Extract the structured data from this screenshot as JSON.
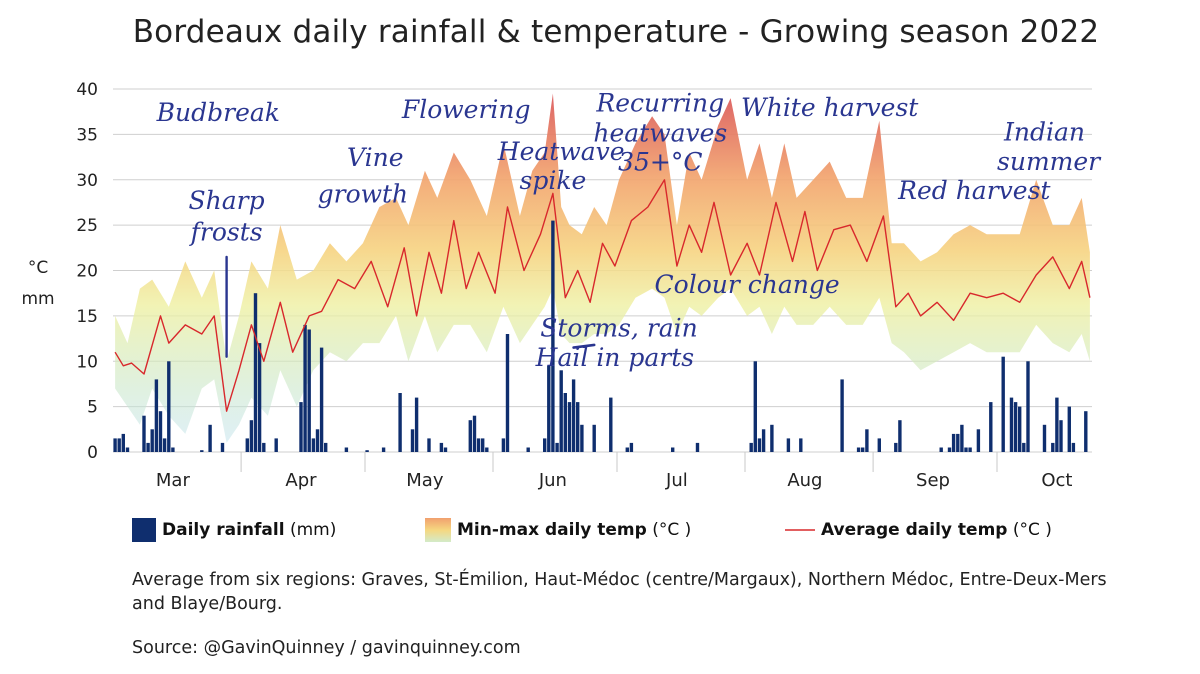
{
  "chart_data": {
    "type": "bar+area+line",
    "title": "Bordeaux daily rainfall & temperature - Growing season 2022",
    "ylabel": [
      "°C",
      "mm"
    ],
    "ylim": [
      0,
      40
    ],
    "yticks": [
      0,
      5,
      10,
      15,
      20,
      25,
      30,
      35,
      40
    ],
    "months": [
      "Mar",
      "Apr",
      "May",
      "Jun",
      "Jul",
      "Aug",
      "Sep",
      "Oct"
    ],
    "grid": true,
    "legend": {
      "rain_label": "Daily rainfall",
      "rain_unit": "(mm)",
      "range_label": "Min-max daily temp",
      "range_unit": "(°C )",
      "avg_label": "Average daily temp",
      "avg_unit": "(°C )"
    },
    "annotations": [
      {
        "text": "Budbreak",
        "date": "2022-03-26",
        "y": 36.5
      },
      {
        "text": "Sharp",
        "date": "2022-03-28",
        "y": 26.8
      },
      {
        "text": "frosts",
        "date": "2022-03-28",
        "y": 23.3
      },
      {
        "text": "Vine",
        "date": "2022-05-03",
        "y": 31.5
      },
      {
        "text": "growth",
        "date": "2022-04-30",
        "y": 27.5
      },
      {
        "text": "Flowering",
        "date": "2022-05-25",
        "y": 36.8
      },
      {
        "text": "Heatwave",
        "date": "2022-06-17",
        "y": 32.2
      },
      {
        "text": "spike",
        "date": "2022-06-15",
        "y": 29.0
      },
      {
        "text": "Recurring",
        "date": "2022-07-11",
        "y": 37.5
      },
      {
        "text": "heatwaves",
        "date": "2022-07-11",
        "y": 34.2
      },
      {
        "text": "35+°C",
        "date": "2022-07-11",
        "y": 31.0
      },
      {
        "text": "White harvest",
        "date": "2022-08-21",
        "y": 37.0
      },
      {
        "text": "Red harvest",
        "date": "2022-09-25",
        "y": 27.9
      },
      {
        "text": "Colour change",
        "date": "2022-08-01",
        "y": 17.5
      },
      {
        "text": "Storms, rain",
        "date": "2022-07-01",
        "y": 12.7
      },
      {
        "text": "Hail in parts",
        "date": "2022-06-30",
        "y": 9.5
      },
      {
        "text": "Indian",
        "date": "2022-10-12",
        "y": 34.3
      },
      {
        "text": "summer",
        "date": "2022-10-13",
        "y": 31.1
      }
    ],
    "avg_temp": {
      "name": "Average daily temp",
      "x": [
        "2022-03-01",
        "2022-03-03",
        "2022-03-05",
        "2022-03-08",
        "2022-03-12",
        "2022-03-14",
        "2022-03-18",
        "2022-03-22",
        "2022-03-25",
        "2022-03-28",
        "2022-03-31",
        "2022-04-03",
        "2022-04-06",
        "2022-04-10",
        "2022-04-13",
        "2022-04-17",
        "2022-04-20",
        "2022-04-24",
        "2022-04-28",
        "2022-05-02",
        "2022-05-06",
        "2022-05-10",
        "2022-05-13",
        "2022-05-16",
        "2022-05-19",
        "2022-05-22",
        "2022-05-25",
        "2022-05-28",
        "2022-06-01",
        "2022-06-04",
        "2022-06-08",
        "2022-06-12",
        "2022-06-15",
        "2022-06-18",
        "2022-06-21",
        "2022-06-24",
        "2022-06-27",
        "2022-06-30",
        "2022-07-04",
        "2022-07-08",
        "2022-07-12",
        "2022-07-15",
        "2022-07-18",
        "2022-07-21",
        "2022-07-24",
        "2022-07-28",
        "2022-08-01",
        "2022-08-04",
        "2022-08-08",
        "2022-08-12",
        "2022-08-15",
        "2022-08-18",
        "2022-08-22",
        "2022-08-26",
        "2022-08-30",
        "2022-09-03",
        "2022-09-06",
        "2022-09-09",
        "2022-09-12",
        "2022-09-16",
        "2022-09-20",
        "2022-09-24",
        "2022-09-28",
        "2022-10-02",
        "2022-10-06",
        "2022-10-10",
        "2022-10-14",
        "2022-10-18",
        "2022-10-21",
        "2022-10-23"
      ],
      "y": [
        11,
        9.5,
        9.8,
        8.6,
        15,
        12,
        14,
        13,
        15,
        4.5,
        9,
        14,
        10,
        16.5,
        11,
        15,
        15.5,
        19,
        18,
        21,
        16,
        22.5,
        15,
        22,
        17.5,
        25.5,
        18,
        22,
        17.5,
        27,
        20,
        24,
        28.5,
        17,
        20,
        16.5,
        23,
        20.5,
        25.5,
        27,
        30,
        20.5,
        25,
        22,
        27.5,
        19.5,
        23,
        19.5,
        27.5,
        21,
        26.5,
        20,
        24.5,
        25,
        21,
        26,
        16,
        17.5,
        15,
        16.5,
        14.5,
        17.5,
        17,
        17.5,
        16.5,
        19.5,
        21.5,
        18,
        21,
        17
      ]
    },
    "temp_range": {
      "name": "Min-max daily temp",
      "x": [
        "2022-03-01",
        "2022-03-04",
        "2022-03-07",
        "2022-03-10",
        "2022-03-14",
        "2022-03-18",
        "2022-03-22",
        "2022-03-25",
        "2022-03-28",
        "2022-03-31",
        "2022-04-03",
        "2022-04-07",
        "2022-04-10",
        "2022-04-14",
        "2022-04-18",
        "2022-04-22",
        "2022-04-26",
        "2022-04-30",
        "2022-05-04",
        "2022-05-08",
        "2022-05-11",
        "2022-05-15",
        "2022-05-18",
        "2022-05-22",
        "2022-05-26",
        "2022-05-30",
        "2022-06-03",
        "2022-06-07",
        "2022-06-10",
        "2022-06-13",
        "2022-06-15",
        "2022-06-17",
        "2022-06-19",
        "2022-06-22",
        "2022-06-25",
        "2022-06-28",
        "2022-07-01",
        "2022-07-05",
        "2022-07-09",
        "2022-07-12",
        "2022-07-15",
        "2022-07-18",
        "2022-07-21",
        "2022-07-25",
        "2022-07-28",
        "2022-08-01",
        "2022-08-04",
        "2022-08-07",
        "2022-08-10",
        "2022-08-13",
        "2022-08-17",
        "2022-08-21",
        "2022-08-25",
        "2022-08-29",
        "2022-09-02",
        "2022-09-05",
        "2022-09-08",
        "2022-09-12",
        "2022-09-16",
        "2022-09-20",
        "2022-09-24",
        "2022-09-28",
        "2022-10-02",
        "2022-10-06",
        "2022-10-10",
        "2022-10-14",
        "2022-10-18",
        "2022-10-21",
        "2022-10-23"
      ],
      "max": [
        15,
        12,
        18,
        19,
        16,
        21,
        17,
        20,
        10,
        15,
        21,
        18,
        25,
        19,
        20,
        23,
        21,
        23,
        27,
        28,
        25,
        31,
        28,
        33,
        30,
        26,
        34,
        26,
        31,
        33,
        39.5,
        27,
        25,
        24,
        27,
        25,
        30,
        34,
        37,
        35,
        25,
        33,
        30,
        36,
        39,
        30,
        34,
        28,
        34,
        28,
        30,
        32,
        28,
        28,
        36.5,
        23,
        23,
        21,
        22,
        24,
        25,
        24,
        24,
        24,
        30,
        25,
        25,
        28,
        22
      ],
      "min": [
        7,
        5,
        3,
        7,
        4,
        2,
        7,
        8,
        1,
        3,
        6,
        4,
        9,
        5,
        9,
        11,
        10,
        12,
        12,
        15,
        10,
        15,
        11,
        14,
        14,
        11,
        16,
        12,
        14,
        16,
        18,
        13,
        12,
        12,
        13,
        13,
        14,
        17,
        18,
        17,
        13,
        16,
        15,
        17,
        18,
        15,
        16,
        13,
        16,
        14,
        14,
        16,
        14,
        14,
        17,
        12,
        11,
        9,
        10,
        11,
        12,
        11,
        11,
        11,
        14,
        12,
        11,
        13,
        10
      ]
    },
    "rainfall": {
      "name": "Daily rainfall",
      "x": [
        "2022-03-01",
        "2022-03-02",
        "2022-03-03",
        "2022-03-04",
        "2022-03-08",
        "2022-03-09",
        "2022-03-10",
        "2022-03-11",
        "2022-03-12",
        "2022-03-13",
        "2022-03-14",
        "2022-03-15",
        "2022-03-22",
        "2022-03-24",
        "2022-03-27",
        "2022-04-02",
        "2022-04-03",
        "2022-04-04",
        "2022-04-05",
        "2022-04-06",
        "2022-04-09",
        "2022-04-15",
        "2022-04-16",
        "2022-04-17",
        "2022-04-18",
        "2022-04-19",
        "2022-04-20",
        "2022-04-21",
        "2022-04-26",
        "2022-05-01",
        "2022-05-05",
        "2022-05-09",
        "2022-05-12",
        "2022-05-13",
        "2022-05-16",
        "2022-05-19",
        "2022-05-20",
        "2022-05-26",
        "2022-05-27",
        "2022-05-28",
        "2022-05-29",
        "2022-05-30",
        "2022-06-03",
        "2022-06-04",
        "2022-06-09",
        "2022-06-13",
        "2022-06-14",
        "2022-06-15",
        "2022-06-16",
        "2022-06-17",
        "2022-06-18",
        "2022-06-19",
        "2022-06-20",
        "2022-06-21",
        "2022-06-22",
        "2022-06-25",
        "2022-06-29",
        "2022-07-03",
        "2022-07-04",
        "2022-07-14",
        "2022-07-20",
        "2022-08-02",
        "2022-08-03",
        "2022-08-04",
        "2022-08-05",
        "2022-08-07",
        "2022-08-11",
        "2022-08-14",
        "2022-08-24",
        "2022-08-28",
        "2022-08-29",
        "2022-08-30",
        "2022-09-02",
        "2022-09-06",
        "2022-09-07",
        "2022-09-17",
        "2022-09-19",
        "2022-09-20",
        "2022-09-21",
        "2022-09-22",
        "2022-09-23",
        "2022-09-24",
        "2022-09-26",
        "2022-09-29",
        "2022-10-02",
        "2022-10-04",
        "2022-10-05",
        "2022-10-06",
        "2022-10-07",
        "2022-10-08",
        "2022-10-12",
        "2022-10-14",
        "2022-10-15",
        "2022-10-16",
        "2022-10-18",
        "2022-10-19",
        "2022-10-22"
      ],
      "values": [
        1.5,
        1.5,
        2,
        0.5,
        4,
        1,
        2.5,
        8,
        4.5,
        1.5,
        10,
        0.5,
        0.2,
        3,
        1,
        1.5,
        3.5,
        17.5,
        12,
        1,
        1.5,
        5.5,
        14,
        13.5,
        1.5,
        2.5,
        11.5,
        1,
        0.5,
        0.2,
        0.5,
        6.5,
        2.5,
        6,
        1.5,
        1,
        0.5,
        3.5,
        4,
        1.5,
        1.5,
        0.5,
        1.5,
        13,
        0.5,
        1.5,
        9.5,
        25.5,
        1,
        9,
        6.5,
        5.5,
        8,
        5.5,
        3,
        3,
        6,
        0.5,
        1,
        0.5,
        1,
        1,
        10,
        1.5,
        2.5,
        3,
        1.5,
        1.5,
        8,
        0.5,
        0.5,
        2.5,
        1.5,
        1,
        3.5,
        0.5,
        0.5,
        2,
        2,
        3,
        0.5,
        0.5,
        2.5,
        5.5,
        10.5,
        6,
        5.5,
        5,
        1,
        10,
        3,
        1,
        6,
        3.5,
        5,
        1,
        4.5
      ]
    },
    "season": {
      "start": "2022-03-01",
      "end": "2022-10-23"
    }
  },
  "note_1": "Average from six regions: Graves, St-Émilion, Haut-Médoc (centre/Margaux), Northern Médoc, Entre-Deux-Mers and Blaye/Bourg.",
  "source": "Source: @GavinQuinney / gavinquinney.com"
}
